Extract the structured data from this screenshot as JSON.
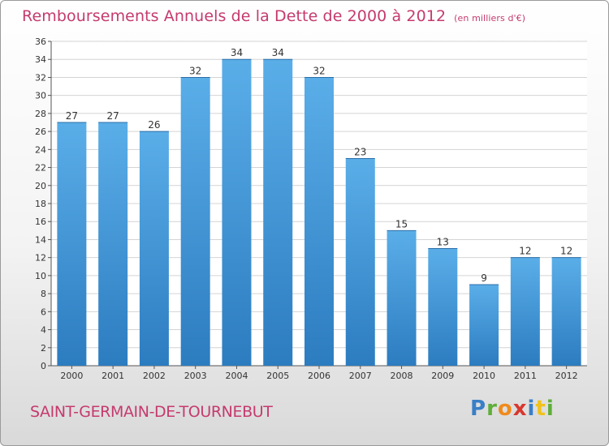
{
  "title": "Remboursements Annuels de la Dette de 2000 à 2012",
  "subtitle": "(en milliers d'€)",
  "town": "SAINT-GERMAIN-DE-TOURNEBUT",
  "logo": "Proxiti",
  "colors": {
    "bar_top": "#5aaee8",
    "bar_bottom": "#2c7cc0",
    "accent": "#c53a6e"
  },
  "chart_data": {
    "type": "bar",
    "title": "Remboursements Annuels de la Dette de 2000 à 2012",
    "subtitle": "(en milliers d'€)",
    "categories": [
      "2000",
      "2001",
      "2002",
      "2003",
      "2004",
      "2005",
      "2006",
      "2007",
      "2008",
      "2009",
      "2010",
      "2011",
      "2012"
    ],
    "values": [
      27,
      27,
      26,
      32,
      34,
      34,
      32,
      23,
      15,
      13,
      9,
      12,
      12
    ],
    "ylim": [
      0,
      36
    ],
    "yticks": [
      0,
      2,
      4,
      6,
      8,
      10,
      12,
      14,
      16,
      18,
      20,
      22,
      24,
      26,
      28,
      30,
      32,
      34,
      36
    ],
    "grid": true,
    "data_labels": true
  }
}
